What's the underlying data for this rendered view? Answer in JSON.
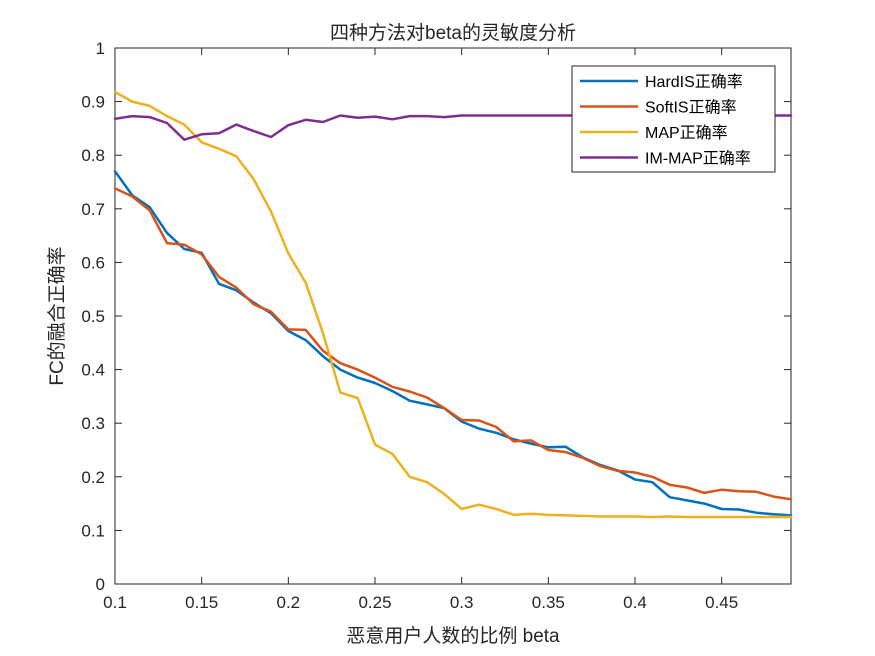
{
  "chart_data": {
    "type": "line",
    "title": "四种方法对beta的灵敏度分析",
    "xlabel": "恶意用户人数的比例 beta",
    "ylabel": "FC的融合正确率",
    "xlim": [
      0.1,
      0.49
    ],
    "ylim": [
      0,
      1
    ],
    "xticks": [
      0.1,
      0.15,
      0.2,
      0.25,
      0.3,
      0.35,
      0.4,
      0.45
    ],
    "xtick_labels": [
      "0.1",
      "0.15",
      "0.2",
      "0.25",
      "0.3",
      "0.35",
      "0.4",
      "0.45"
    ],
    "yticks": [
      0,
      0.1,
      0.2,
      0.3,
      0.4,
      0.5,
      0.6,
      0.7,
      0.8,
      0.9,
      1
    ],
    "ytick_labels": [
      "0",
      "0.1",
      "0.2",
      "0.3",
      "0.4",
      "0.5",
      "0.6",
      "0.7",
      "0.8",
      "0.9",
      "1"
    ],
    "grid": false,
    "legend_position": "top-right",
    "x": [
      0.1,
      0.11,
      0.12,
      0.13,
      0.14,
      0.15,
      0.16,
      0.17,
      0.18,
      0.19,
      0.2,
      0.21,
      0.22,
      0.23,
      0.24,
      0.25,
      0.26,
      0.27,
      0.28,
      0.29,
      0.3,
      0.31,
      0.32,
      0.33,
      0.34,
      0.35,
      0.36,
      0.37,
      0.38,
      0.39,
      0.4,
      0.41,
      0.42,
      0.43,
      0.44,
      0.45,
      0.46,
      0.47,
      0.48,
      0.49
    ],
    "series": [
      {
        "name": "HardIS正确率",
        "color": "#0072BD",
        "values": [
          0.77,
          0.725,
          0.703,
          0.655,
          0.625,
          0.618,
          0.56,
          0.548,
          0.525,
          0.505,
          0.472,
          0.455,
          0.425,
          0.4,
          0.385,
          0.375,
          0.36,
          0.342,
          0.335,
          0.328,
          0.303,
          0.29,
          0.282,
          0.27,
          0.262,
          0.255,
          0.256,
          0.236,
          0.222,
          0.212,
          0.195,
          0.19,
          0.162,
          0.156,
          0.15,
          0.14,
          0.139,
          0.133,
          0.13,
          0.128
        ]
      },
      {
        "name": "SoftIS正确率",
        "color": "#D95319",
        "values": [
          0.738,
          0.723,
          0.697,
          0.636,
          0.633,
          0.615,
          0.573,
          0.553,
          0.522,
          0.508,
          0.475,
          0.474,
          0.435,
          0.412,
          0.4,
          0.385,
          0.368,
          0.359,
          0.348,
          0.328,
          0.306,
          0.305,
          0.293,
          0.266,
          0.268,
          0.25,
          0.246,
          0.235,
          0.22,
          0.211,
          0.208,
          0.2,
          0.185,
          0.18,
          0.17,
          0.176,
          0.173,
          0.172,
          0.163,
          0.158
        ]
      },
      {
        "name": "MAP正确率",
        "color": "#EDB120",
        "values": [
          0.918,
          0.9,
          0.892,
          0.873,
          0.857,
          0.824,
          0.812,
          0.798,
          0.755,
          0.695,
          0.617,
          0.562,
          0.468,
          0.357,
          0.347,
          0.26,
          0.243,
          0.2,
          0.19,
          0.168,
          0.14,
          0.148,
          0.14,
          0.129,
          0.131,
          0.129,
          0.128,
          0.127,
          0.126,
          0.126,
          0.126,
          0.125,
          0.126,
          0.125,
          0.125,
          0.125,
          0.125,
          0.125,
          0.125,
          0.125
        ]
      },
      {
        "name": "IM-MAP正确率",
        "color": "#7E2F8E",
        "values": [
          0.868,
          0.873,
          0.871,
          0.86,
          0.829,
          0.839,
          0.841,
          0.857,
          0.845,
          0.834,
          0.856,
          0.866,
          0.862,
          0.874,
          0.87,
          0.872,
          0.867,
          0.873,
          0.873,
          0.871,
          0.874,
          0.874,
          0.874,
          0.874,
          0.874,
          0.874,
          0.874,
          0.874,
          0.874,
          0.874,
          0.874,
          0.874,
          0.874,
          0.874,
          0.874,
          0.874,
          0.874,
          0.874,
          0.874,
          0.874
        ]
      }
    ]
  }
}
